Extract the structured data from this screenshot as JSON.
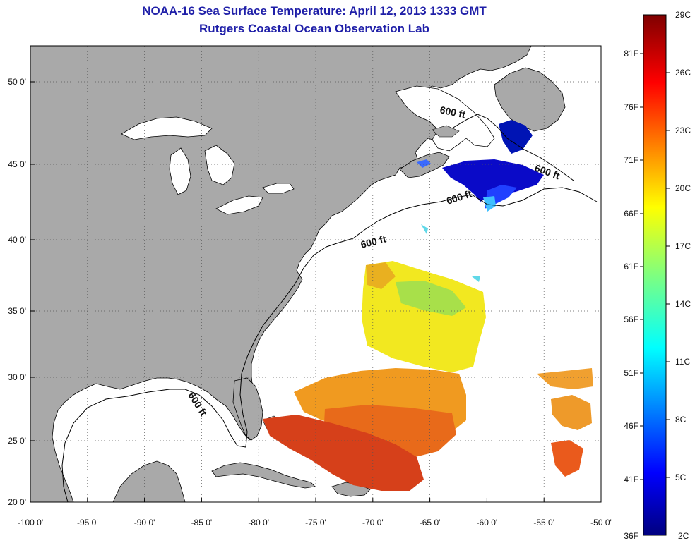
{
  "title": {
    "line1": "NOAA-16 Sea Surface Temperature:  April 12, 2013 1333 GMT",
    "line2": "Rutgers Coastal Ocean Observation Lab"
  },
  "axes": {
    "lon_ticks": [
      "-100 0'",
      "-95 0'",
      "-90 0'",
      "-85 0'",
      "-80 0'",
      "-75 0'",
      "-70 0'",
      "-65 0'",
      "-60 0'",
      "-55 0'",
      "-50 0'"
    ],
    "lat_ticks": [
      "20 0'",
      "25 0'",
      "30 0'",
      "35 0'",
      "40 0'",
      "45 0'",
      "50 0'"
    ]
  },
  "contour_label": "600 ft",
  "colorbar": {
    "celsius": [
      "2C",
      "5C",
      "8C",
      "11C",
      "14C",
      "17C",
      "20C",
      "23C",
      "26C",
      "29C"
    ],
    "fahrenheit": [
      "36F",
      "41F",
      "46F",
      "51F",
      "56F",
      "61F",
      "66F",
      "71F",
      "76F",
      "81F"
    ]
  },
  "colors": {
    "land": "#a9a9a9",
    "ocean": "#ffffff",
    "title": "#1f1fa8"
  }
}
